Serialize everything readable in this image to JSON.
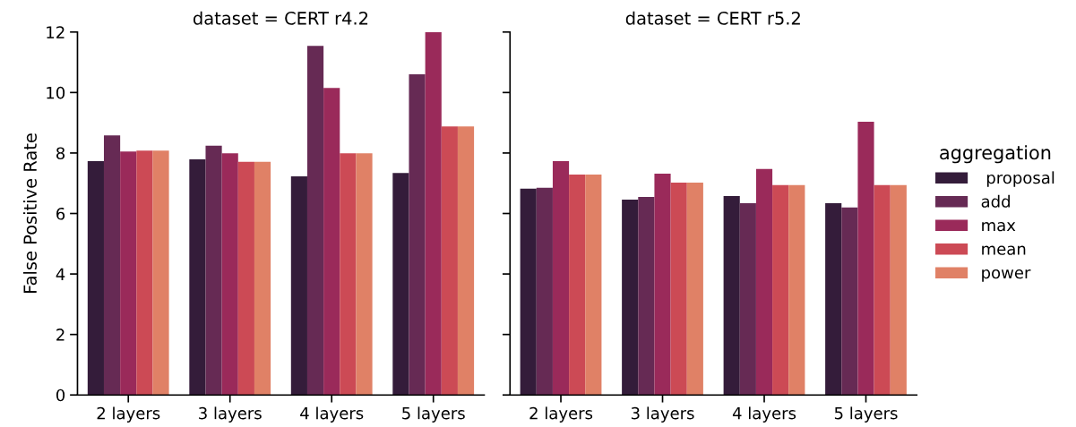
{
  "chart_data": [
    {
      "type": "bar",
      "title": "dataset = CERT r4.2",
      "ylabel": "False Positive Rate",
      "categories": [
        "2 layers",
        "3 layers",
        "4 layers",
        "5 layers"
      ],
      "ylim": [
        0,
        12
      ],
      "yticks": [
        0,
        2,
        4,
        6,
        8,
        10,
        12
      ],
      "series": [
        {
          "color": "#341c3a",
          "values": [
            7.73,
            7.79,
            7.23,
            7.34
          ]
        },
        {
          "color": "#662a54",
          "values": [
            8.58,
            8.24,
            11.54,
            10.6
          ]
        },
        {
          "color": "#9a2a5a",
          "values": [
            8.05,
            7.99,
            10.15,
            12.0
          ]
        },
        {
          "color": "#cc4a55",
          "values": [
            8.08,
            7.71,
            7.99,
            8.88
          ]
        },
        {
          "color": "#e08166",
          "values": [
            8.08,
            7.71,
            7.99,
            8.88
          ]
        }
      ]
    },
    {
      "type": "bar",
      "title": "dataset = CERT r5.2",
      "categories": [
        "2 layers",
        "3 layers",
        "4 layers",
        "5 layers"
      ],
      "ylim": [
        0,
        12
      ],
      "yticks": [
        0,
        2,
        4,
        6,
        8,
        10,
        12
      ],
      "tick_labels": "x",
      "legend": "right",
      "legend_title": "aggregation",
      "series": [
        {
          "name": " proposal",
          "color": "#341c3a",
          "values": [
            6.82,
            6.46,
            6.58,
            6.34
          ]
        },
        {
          "name": "add",
          "color": "#662a54",
          "values": [
            6.85,
            6.55,
            6.34,
            6.2
          ]
        },
        {
          "name": "max",
          "color": "#9a2a5a",
          "values": [
            7.73,
            7.32,
            7.47,
            9.03
          ]
        },
        {
          "name": "mean",
          "color": "#cc4a55",
          "values": [
            7.29,
            7.02,
            6.94,
            6.94
          ]
        },
        {
          "name": "power",
          "color": "#e08166",
          "values": [
            7.29,
            7.02,
            6.94,
            6.94
          ]
        }
      ]
    }
  ]
}
